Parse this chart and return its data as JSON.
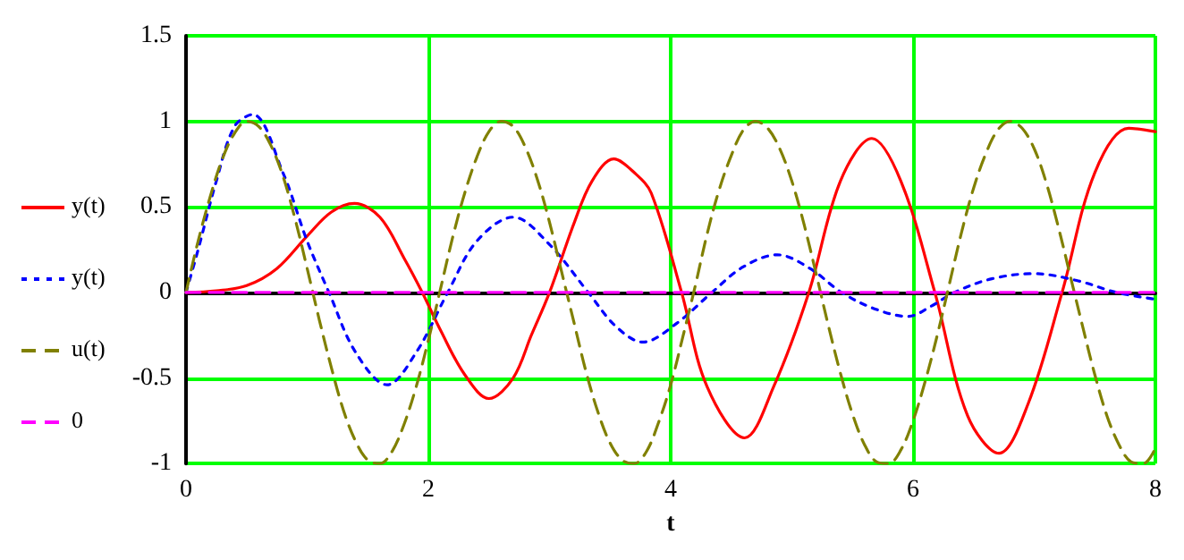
{
  "chart_data": {
    "type": "line",
    "xlabel": "t",
    "xlim": [
      0,
      8
    ],
    "xticks": [
      0,
      2,
      4,
      6,
      8
    ],
    "ylim": [
      -1,
      1.5
    ],
    "yticks": [
      -1,
      -0.5,
      0,
      0.5,
      1,
      1.5
    ],
    "grid": true,
    "legend": "left",
    "marker": "none",
    "series": [
      {
        "name": "y(t)",
        "color": "#ff0000",
        "line_style": "solid",
        "x": [
          0,
          0.25,
          0.5,
          0.75,
          1.0,
          1.2,
          1.39,
          1.6,
          1.8,
          1.95,
          2.1,
          2.3,
          2.5,
          2.7,
          2.85,
          3.0,
          3.2,
          3.35,
          3.53,
          3.7,
          3.84,
          4.09,
          4.3,
          4.61,
          4.85,
          5.14,
          5.4,
          5.66,
          5.9,
          6.18,
          6.45,
          6.71,
          6.95,
          7.23,
          7.5,
          7.78,
          8
        ],
        "values": [
          0,
          0.01,
          0.04,
          0.14,
          0.33,
          0.47,
          0.52,
          0.44,
          0.2,
          0,
          -0.22,
          -0.48,
          -0.62,
          -0.5,
          -0.25,
          0,
          0.4,
          0.65,
          0.78,
          0.7,
          0.58,
          0,
          -0.55,
          -0.85,
          -0.55,
          0,
          0.65,
          0.9,
          0.65,
          0,
          -0.72,
          -0.94,
          -0.65,
          0,
          0.7,
          0.96,
          0.94
        ]
      },
      {
        "name": "y(t)",
        "color": "#0000ff",
        "line_style": "dotted",
        "x": [
          0,
          0.1,
          0.25,
          0.4,
          0.55,
          0.8,
          1.0,
          1.18,
          1.4,
          1.66,
          1.9,
          2.16,
          2.4,
          2.7,
          3.0,
          3.32,
          3.55,
          3.77,
          4.05,
          4.34,
          4.6,
          4.88,
          5.15,
          5.41,
          5.7,
          5.96,
          6.15,
          6.34,
          6.65,
          7.0,
          7.35,
          7.68,
          8
        ],
        "values": [
          0,
          0.25,
          0.65,
          0.97,
          1.04,
          0.7,
          0.3,
          0,
          -0.35,
          -0.54,
          -0.35,
          0,
          0.3,
          0.44,
          0.28,
          0,
          -0.2,
          -0.29,
          -0.18,
          0,
          0.15,
          0.22,
          0.14,
          0,
          -0.1,
          -0.14,
          -0.08,
          0,
          0.08,
          0.11,
          0.07,
          0,
          -0.04
        ]
      },
      {
        "name": "u(t)",
        "color": "#808000",
        "line_style": "dashed",
        "x": [
          0,
          0.1,
          0.2,
          0.3,
          0.4,
          0.5,
          0.6,
          0.7,
          0.8,
          0.9,
          1.0,
          1.1,
          1.2,
          1.3,
          1.4,
          1.5,
          1.6,
          1.7,
          1.8,
          1.9,
          2.0,
          2.1,
          2.2,
          2.3,
          2.4,
          2.5,
          2.6,
          2.7,
          2.8,
          2.9,
          3.0,
          3.1,
          3.2,
          3.3,
          3.4,
          3.5,
          3.6,
          3.7,
          3.8,
          3.9,
          4.0,
          4.1,
          4.2,
          4.3,
          4.4,
          4.5,
          4.6,
          4.7,
          4.8,
          4.9,
          5.0,
          5.1,
          5.2,
          5.3,
          5.4,
          5.5,
          5.6,
          5.7,
          5.8,
          5.9,
          6.0,
          6.1,
          6.2,
          6.3,
          6.4,
          6.5,
          6.6,
          6.7,
          6.8,
          6.9,
          7.0,
          7.1,
          7.2,
          7.3,
          7.4,
          7.5,
          7.6,
          7.7,
          7.8,
          7.9,
          8.0
        ],
        "values": [
          0,
          0.3,
          0.56,
          0.78,
          0.93,
          1.0,
          0.97,
          0.86,
          0.68,
          0.43,
          0.14,
          -0.16,
          -0.44,
          -0.69,
          -0.87,
          -0.98,
          -1.0,
          -0.93,
          -0.77,
          -0.55,
          -0.28,
          0.02,
          0.32,
          0.58,
          0.79,
          0.94,
          1.0,
          0.97,
          0.85,
          0.66,
          0.41,
          0.12,
          -0.17,
          -0.46,
          -0.7,
          -0.88,
          -0.98,
          -1.0,
          -0.93,
          -0.76,
          -0.54,
          -0.26,
          0.03,
          0.34,
          0.6,
          0.8,
          0.95,
          1.0,
          0.96,
          0.84,
          0.65,
          0.4,
          0.11,
          -0.19,
          -0.47,
          -0.71,
          -0.89,
          -0.99,
          -1.0,
          -0.92,
          -0.75,
          -0.52,
          -0.25,
          0.05,
          0.35,
          0.61,
          0.81,
          0.95,
          1.0,
          0.96,
          0.84,
          0.64,
          0.38,
          0.09,
          -0.2,
          -0.48,
          -0.72,
          -0.89,
          -0.99,
          -1.0,
          -0.91
        ]
      },
      {
        "name": "0",
        "color": "#ff00ff",
        "line_style": "dashed",
        "x": [
          0,
          8
        ],
        "values": [
          0,
          0
        ]
      }
    ]
  }
}
